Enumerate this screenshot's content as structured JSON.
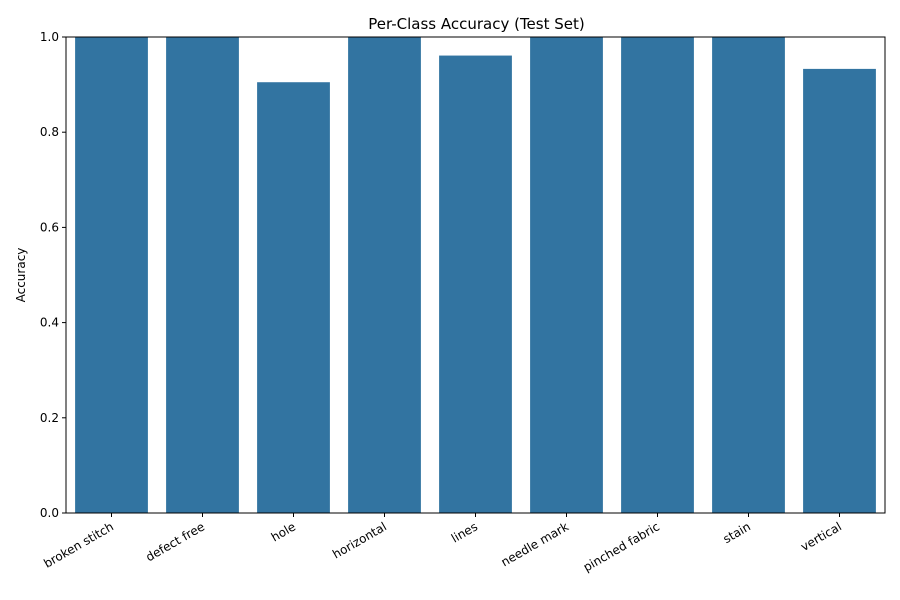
{
  "chart_data": {
    "type": "bar",
    "title": "Per-Class Accuracy (Test Set)",
    "xlabel": "",
    "ylabel": "Accuracy",
    "ylim": [
      0,
      1.0
    ],
    "yticks": [
      "0.0",
      "0.2",
      "0.4",
      "0.6",
      "0.8",
      "1.0"
    ],
    "categories": [
      "broken stitch",
      "defect free",
      "hole",
      "horizontal",
      "lines",
      "needle mark",
      "pinched fabric",
      "stain",
      "vertical"
    ],
    "values": [
      1.0,
      1.0,
      0.905,
      1.0,
      0.961,
      1.0,
      1.0,
      1.0,
      0.933
    ],
    "grid": false,
    "bar_color": "#3274a1"
  }
}
